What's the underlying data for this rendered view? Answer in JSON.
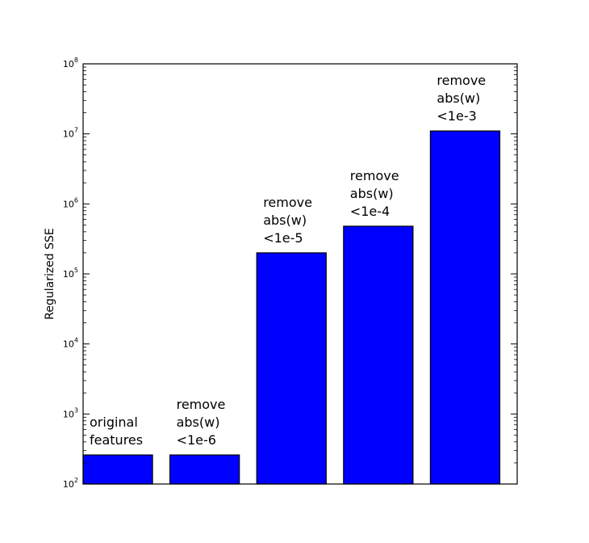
{
  "chart_data": {
    "type": "bar",
    "title": "",
    "xlabel": "",
    "ylabel": "Regularized SSE",
    "yscale": "log",
    "ylim": [
      100,
      100000000
    ],
    "grid": false,
    "ticks": [
      {
        "base": "10",
        "exp": "2"
      },
      {
        "base": "10",
        "exp": "3"
      },
      {
        "base": "10",
        "exp": "4"
      },
      {
        "base": "10",
        "exp": "5"
      },
      {
        "base": "10",
        "exp": "6"
      },
      {
        "base": "10",
        "exp": "7"
      },
      {
        "base": "10",
        "exp": "8"
      }
    ],
    "categories": [
      "original features",
      "remove abs(w) <1e-6",
      "remove abs(w) <1e-5",
      "remove abs(w) <1e-4",
      "remove abs(w) <1e-3"
    ],
    "bar_labels": [
      [
        "original",
        "features"
      ],
      [
        "remove",
        "abs(w)",
        "<1e-6"
      ],
      [
        "remove",
        "abs(w)",
        "<1e-5"
      ],
      [
        "remove",
        "abs(w)",
        "<1e-4"
      ],
      [
        "remove",
        "abs(w)",
        "<1e-3"
      ]
    ],
    "values": [
      260,
      260,
      200000,
      480000,
      11000000
    ],
    "bar_color": "#0000ff",
    "edge_color": "#000000"
  }
}
